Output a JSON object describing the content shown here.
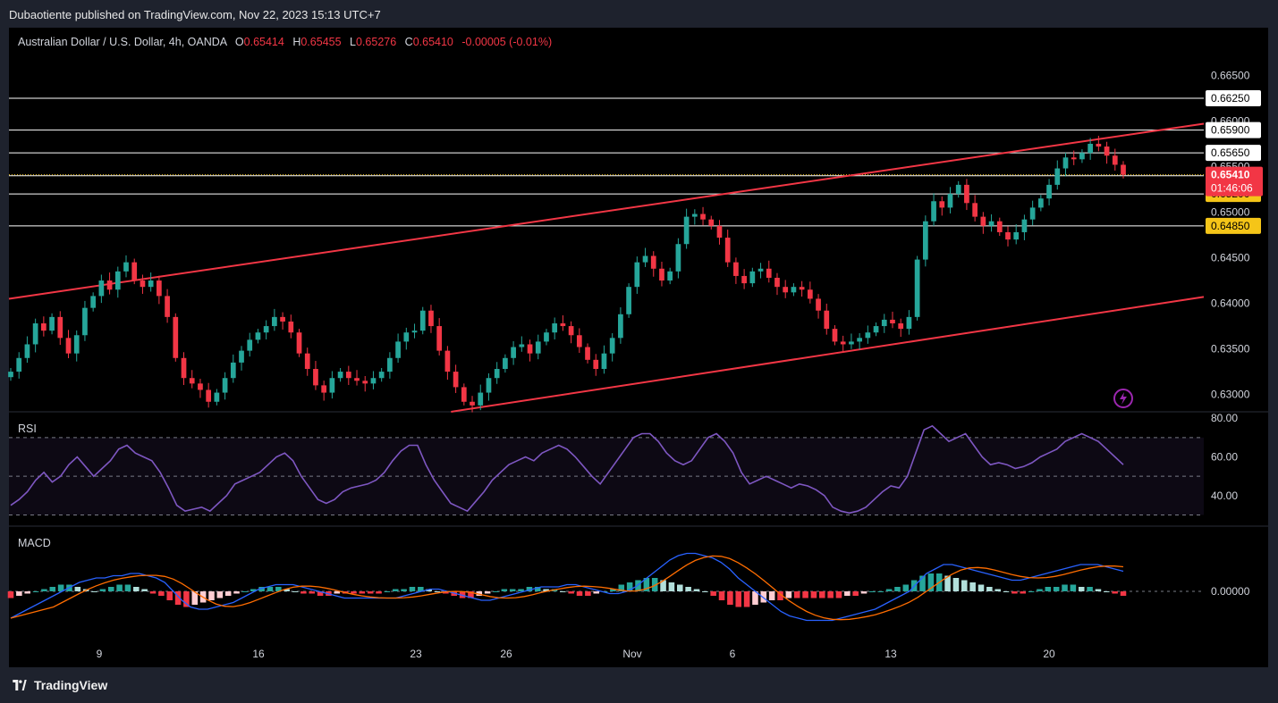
{
  "publisher_line": "Dubaotiente published on TradingView.com, Nov 22, 2023 15:13 UTC+7",
  "legend": {
    "symbol": "Australian Dollar / U.S. Dollar, 4h, OANDA",
    "o_label": "O",
    "o": "0.65414",
    "h_label": "H",
    "h": "0.65455",
    "l_label": "L",
    "l": "0.65276",
    "c_label": "C",
    "c": "0.65410",
    "change": "-0.00005 (-0.01%)"
  },
  "rsi_label": "RSI",
  "macd_label": "MACD",
  "brand": "TradingView",
  "icons": [
    "tradingview-logo-icon",
    "lightning-icon"
  ],
  "colors": {
    "up": "#26a69a",
    "down": "#f23645",
    "channel": "#f23645",
    "level": "#ffffff",
    "current_level": "#f5c518",
    "rsi": "#7e57c2",
    "macd": "#2962ff",
    "signal": "#ff6d00"
  },
  "chart_data": [
    {
      "type": "candlestick",
      "title": "Australian Dollar / U.S. Dollar, 4h, OANDA",
      "ylim": [
        0.628,
        0.6672
      ],
      "y_ticks": [
        "0.66500",
        "0.66000",
        "0.65500",
        "0.65000",
        "0.64500",
        "0.64000",
        "0.63500",
        "0.63000"
      ],
      "x_ticks": [
        "9",
        "16",
        "23",
        "26",
        "Nov",
        "6",
        "13",
        "20"
      ],
      "close_path": [
        0.6325,
        0.634,
        0.6355,
        0.6378,
        0.637,
        0.6385,
        0.6362,
        0.6345,
        0.6365,
        0.6395,
        0.6408,
        0.6425,
        0.6415,
        0.6435,
        0.6445,
        0.6425,
        0.6418,
        0.6425,
        0.6408,
        0.6385,
        0.634,
        0.6318,
        0.6312,
        0.6305,
        0.6292,
        0.6302,
        0.6318,
        0.6335,
        0.6348,
        0.636,
        0.6368,
        0.6375,
        0.6385,
        0.638,
        0.6368,
        0.6345,
        0.6328,
        0.631,
        0.6302,
        0.6318,
        0.6325,
        0.6318,
        0.6315,
        0.6312,
        0.6318,
        0.6325,
        0.634,
        0.6358,
        0.6368,
        0.637,
        0.6392,
        0.6375,
        0.6348,
        0.6325,
        0.6308,
        0.6292,
        0.6288,
        0.6302,
        0.6318,
        0.6328,
        0.634,
        0.6352,
        0.6355,
        0.6345,
        0.6358,
        0.6368,
        0.6378,
        0.6375,
        0.6365,
        0.6352,
        0.6338,
        0.6328,
        0.6345,
        0.6362,
        0.6388,
        0.6418,
        0.6445,
        0.6452,
        0.6438,
        0.6425,
        0.6435,
        0.6465,
        0.6495,
        0.6498,
        0.6492,
        0.6485,
        0.6472,
        0.6445,
        0.643,
        0.6422,
        0.6435,
        0.6438,
        0.6428,
        0.6418,
        0.6412,
        0.6418,
        0.6415,
        0.6405,
        0.6392,
        0.6372,
        0.6358,
        0.6355,
        0.6358,
        0.6362,
        0.6368,
        0.6375,
        0.6382,
        0.6378,
        0.6372,
        0.6385,
        0.6448,
        0.649,
        0.6512,
        0.6505,
        0.652,
        0.653,
        0.651,
        0.6495,
        0.6485,
        0.649,
        0.6478,
        0.647,
        0.6478,
        0.6492,
        0.6505,
        0.6515,
        0.653,
        0.6548,
        0.656,
        0.6558,
        0.6565,
        0.6575,
        0.6572,
        0.6562,
        0.6552,
        0.6541
      ],
      "horizontal_levels": [
        "0.66250",
        "0.65900",
        "0.65650",
        "0.65400",
        "0.65200",
        "0.64850"
      ],
      "last_price": "0.65410",
      "countdown": "01:46:06",
      "visible_axis_labels": [
        "0.66500",
        "0.66250",
        "0.66000",
        "0.65900",
        "0.65650",
        "0.65500",
        "0.65410",
        "01:46:06",
        "0.65400",
        "0.65200",
        "0.64850",
        "0.64500",
        "0.64000",
        "0.63500",
        "0.63000"
      ],
      "channel": {
        "upper": [
          [
            0.0,
            0.6405
          ],
          [
            1.0,
            0.6597
          ]
        ],
        "lower": [
          [
            0.37,
            0.6281
          ],
          [
            1.0,
            0.6407
          ]
        ]
      }
    },
    {
      "type": "line",
      "name": "RSI",
      "ylim": [
        27,
        81
      ],
      "y_ticks": [
        "80.00",
        "60.00",
        "40.00"
      ],
      "guides": [
        70,
        50,
        30
      ],
      "values": [
        35,
        38,
        42,
        48,
        52,
        47,
        50,
        56,
        60,
        55,
        50,
        54,
        58,
        64,
        66,
        62,
        60,
        58,
        52,
        44,
        35,
        32,
        33,
        34,
        32,
        36,
        40,
        46,
        48,
        50,
        52,
        56,
        60,
        62,
        58,
        50,
        44,
        38,
        36,
        38,
        42,
        44,
        45,
        46,
        48,
        52,
        58,
        63,
        66,
        66,
        56,
        48,
        42,
        36,
        34,
        32,
        37,
        42,
        48,
        52,
        56,
        58,
        60,
        58,
        62,
        64,
        66,
        64,
        60,
        55,
        50,
        46,
        52,
        58,
        64,
        70,
        72,
        72,
        68,
        62,
        58,
        56,
        58,
        64,
        70,
        72,
        68,
        62,
        52,
        46,
        48,
        50,
        48,
        46,
        44,
        46,
        45,
        43,
        40,
        34,
        32,
        31,
        32,
        34,
        38,
        42,
        45,
        44,
        50,
        62,
        74,
        76,
        72,
        68,
        70,
        72,
        66,
        60,
        56,
        57,
        56,
        54,
        55,
        57,
        60,
        62,
        64,
        68,
        70,
        72,
        70,
        68,
        64,
        60,
        56
      ],
      "x_frac_end": 0.93
    },
    {
      "type": "bar+line",
      "name": "MACD",
      "y_ticks": [
        "0.00000"
      ],
      "histogram": [
        -3,
        -2,
        -1,
        0,
        1,
        2,
        3,
        3,
        2,
        1,
        0,
        1,
        2,
        3,
        3,
        2,
        1,
        -1,
        -2,
        -4,
        -6,
        -7,
        -6,
        -5,
        -4,
        -3,
        -2,
        -1,
        0,
        1,
        2,
        2,
        2,
        1,
        0,
        -1,
        -1,
        -2,
        -2,
        -1,
        -1,
        -1,
        -1,
        -1,
        -1,
        0,
        1,
        1,
        2,
        2,
        1,
        0,
        -1,
        -2,
        -3,
        -3,
        -2,
        -1,
        0,
        1,
        1,
        1,
        2,
        2,
        1,
        1,
        0,
        -1,
        -2,
        -2,
        -1,
        0,
        1,
        3,
        4,
        5,
        6,
        6,
        5,
        4,
        3,
        2,
        1,
        0,
        -2,
        -4,
        -6,
        -7,
        -7,
        -6,
        -5,
        -4,
        -4,
        -3,
        -3,
        -3,
        -3,
        -3,
        -3,
        -3,
        -2,
        -2,
        -1,
        0,
        0,
        1,
        2,
        3,
        5,
        7,
        8,
        8,
        7,
        6,
        5,
        4,
        3,
        2,
        1,
        0,
        -1,
        -1,
        0,
        1,
        2,
        2,
        3,
        3,
        2,
        2,
        1,
        0,
        -1,
        -2
      ],
      "macd_line": [
        -12,
        -10,
        -8,
        -6,
        -4,
        -2,
        0,
        2,
        4,
        5,
        6,
        6,
        7,
        7,
        8,
        8,
        7,
        6,
        4,
        0,
        -4,
        -7,
        -8,
        -8,
        -7,
        -6,
        -5,
        -3,
        -1,
        1,
        2,
        3,
        3,
        3,
        2,
        1,
        0,
        -1,
        -2,
        -3,
        -3,
        -3,
        -3,
        -3,
        -3,
        -3,
        -2,
        -1,
        0,
        1,
        1,
        0,
        -1,
        -2,
        -3,
        -4,
        -4,
        -3,
        -2,
        -1,
        0,
        1,
        2,
        2,
        2,
        3,
        3,
        2,
        1,
        0,
        -1,
        -1,
        0,
        2,
        5,
        8,
        11,
        14,
        16,
        17,
        17,
        16,
        15,
        13,
        10,
        6,
        3,
        0,
        -3,
        -6,
        -9,
        -11,
        -12,
        -13,
        -13,
        -13,
        -13,
        -12,
        -11,
        -10,
        -9,
        -8,
        -6,
        -4,
        -2,
        0,
        4,
        8,
        10,
        12,
        12,
        11,
        10,
        9,
        8,
        7,
        6,
        5,
        5,
        6,
        7,
        8,
        9,
        10,
        11,
        12,
        12,
        12,
        11,
        10,
        9
      ]
    }
  ]
}
